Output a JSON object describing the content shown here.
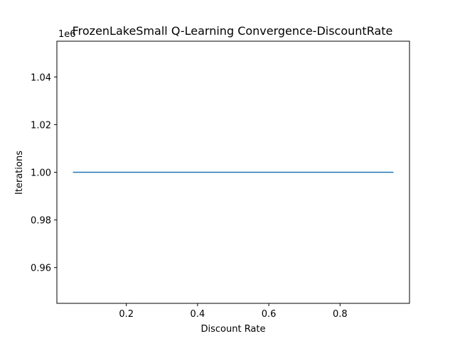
{
  "chart_data": {
    "type": "line",
    "title": "FrozenLakeSmall Q-Learning Convergence-DiscountRate",
    "xlabel": "Discount Rate",
    "ylabel": "Iterations",
    "offset_text": "1e6",
    "xlim": [
      0.005,
      0.995
    ],
    "ylim": [
      0.945,
      1.055
    ],
    "x_ticks": [
      0.2,
      0.4,
      0.6,
      0.8
    ],
    "x_tick_labels": [
      "0.2",
      "0.4",
      "0.6",
      "0.8"
    ],
    "y_ticks": [
      0.96,
      0.98,
      1.0,
      1.02,
      1.04
    ],
    "y_tick_labels": [
      "0.96",
      "0.98",
      "1.00",
      "1.02",
      "1.04"
    ],
    "grid": false,
    "series": [
      {
        "color": "#1f77b4",
        "x": [
          0.05,
          0.95
        ],
        "y": [
          1.0,
          1.0
        ]
      }
    ]
  }
}
